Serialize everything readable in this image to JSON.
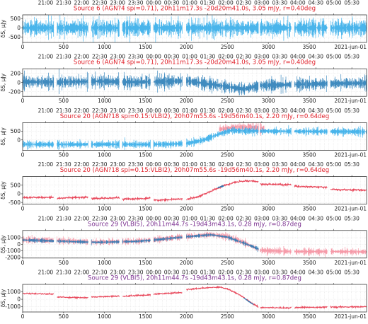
{
  "figure": {
    "colors": {
      "blue": "#1f77b4",
      "cyan": "#2aa8e8",
      "red": "#e8495c",
      "pink": "#f48a9a",
      "purple": "#7a2f8f",
      "title_red": "#e0202a"
    }
  },
  "chart_data": [
    {
      "type": "scatter",
      "title": "Source 6 (AGN?4 spi=0.71), 20h11m17.3s -20d20m41.0s, 3.05 mJy, r=0.40deg",
      "title_color": "#e0202a",
      "ylabel": "δS, μJy",
      "date_label": "2021-jun-01",
      "xlim": [
        0,
        4200
      ],
      "ylim": [
        -800,
        700
      ],
      "yticks": [
        -500,
        0,
        500
      ],
      "xticks": [
        0,
        500,
        1000,
        1500,
        2000,
        2500,
        3000,
        3500
      ],
      "top_ticks": [
        "21:00",
        "21:30",
        "22:00",
        "22:30",
        "23:00",
        "23:30",
        "00:00",
        "00:30",
        "01:00",
        "01:30",
        "02:00",
        "02:30",
        "03:00",
        "03:30",
        "04:00",
        "04:30",
        "05:00",
        "05:30"
      ],
      "grid": true,
      "series": [
        {
          "style": "noisy",
          "color": "#2aa8e8",
          "points": [
            [
              0,
              0
            ],
            [
              4200,
              0
            ]
          ],
          "noise": 250
        }
      ],
      "segments": [
        [
          0,
          380
        ],
        [
          420,
          800
        ],
        [
          840,
          1180
        ],
        [
          1220,
          1560
        ],
        [
          1600,
          1950
        ],
        [
          2000,
          2880
        ],
        [
          2900,
          3280
        ],
        [
          3320,
          3720
        ],
        [
          3760,
          4200
        ]
      ]
    },
    {
      "type": "scatter",
      "title": "Source 6 (AGN?4 spi=0.71), 20h11m17.3s -20d20m41.0s, 3.05 mJy, r=0.40deg",
      "title_color": "#e0202a",
      "ylabel": "δS, μJy",
      "date_label": "2021-jun-01",
      "xlim": [
        0,
        4200
      ],
      "ylim": [
        -300,
        300
      ],
      "yticks": [
        -200,
        0,
        200
      ],
      "xticks": [
        0,
        500,
        1000,
        1500,
        2000,
        2500,
        3000,
        3500
      ],
      "top_ticks": [
        "21:00",
        "21:30",
        "22:00",
        "22:30",
        "23:00",
        "23:30",
        "00:00",
        "00:30",
        "01:00",
        "01:30",
        "02:00",
        "02:30",
        "03:00",
        "03:30",
        "04:00",
        "04:30",
        "05:00",
        "05:30"
      ],
      "grid": true,
      "series": [
        {
          "style": "noisy",
          "color": "#1f77b4",
          "points": [
            [
              0,
              20
            ],
            [
              400,
              10
            ],
            [
              900,
              30
            ],
            [
              1400,
              10
            ],
            [
              2000,
              40
            ],
            [
              2400,
              -60
            ],
            [
              2700,
              -140
            ],
            [
              2900,
              -60
            ],
            [
              3300,
              -40
            ],
            [
              3800,
              -20
            ],
            [
              4200,
              -10
            ]
          ],
          "noise": 70
        }
      ],
      "segments": [
        [
          0,
          380
        ],
        [
          420,
          800
        ],
        [
          840,
          1180
        ],
        [
          1220,
          1560
        ],
        [
          1600,
          1950
        ],
        [
          2000,
          2880
        ],
        [
          2900,
          3280
        ],
        [
          3320,
          3720
        ],
        [
          3760,
          4200
        ]
      ]
    },
    {
      "type": "scatter",
      "title": "Source 20 (AGN?18 spi=0.15:VLBI2), 20h07m55.6s -19d56m40.1s, 2.20 mJy, r=0.64deg",
      "title_color": "#e0202a",
      "ylabel": "δS, μJy",
      "date_label": "2021-jun-01",
      "xlim": [
        0,
        4200
      ],
      "ylim": [
        -600,
        1000
      ],
      "yticks": [
        0,
        500
      ],
      "xticks": [
        0,
        500,
        1000,
        1500,
        2000,
        2500,
        3000,
        3500
      ],
      "top_ticks": [
        "21:00",
        "21:30",
        "22:00",
        "22:30",
        "23:00",
        "23:30",
        "00:00",
        "00:30",
        "01:00",
        "01:30",
        "02:00",
        "02:30",
        "03:00",
        "03:30",
        "04:00",
        "04:30",
        "05:00",
        "05:30"
      ],
      "grid": true,
      "series": [
        {
          "style": "noisy",
          "color": "#f48a9a",
          "points": [
            [
              2400,
              620
            ],
            [
              2600,
              760
            ],
            [
              2800,
              740
            ],
            [
              2950,
              680
            ]
          ],
          "noise": 120
        },
        {
          "style": "noisy",
          "color": "#2aa8e8",
          "points": [
            [
              0,
              -250
            ],
            [
              500,
              -260
            ],
            [
              1000,
              -250
            ],
            [
              1500,
              -260
            ],
            [
              1800,
              -240
            ],
            [
              2000,
              -200
            ],
            [
              2200,
              -20
            ],
            [
              2400,
              350
            ],
            [
              2550,
              560
            ],
            [
              2700,
              520
            ],
            [
              2900,
              520
            ],
            [
              3300,
              500
            ],
            [
              3800,
              490
            ],
            [
              4200,
              480
            ]
          ],
          "noise": 110
        }
      ],
      "segments": [
        [
          0,
          380
        ],
        [
          420,
          800
        ],
        [
          840,
          1180
        ],
        [
          1220,
          1560
        ],
        [
          1600,
          1950
        ],
        [
          2000,
          2880
        ],
        [
          2900,
          3280
        ],
        [
          3320,
          3720
        ],
        [
          3760,
          4200
        ]
      ]
    },
    {
      "type": "scatter",
      "title": "Source 20 (AGN?18 spi=0.15:VLBI2), 20h07m55.6s -19d56m40.1s, 2.20 mJy, r=0.64deg",
      "title_color": "#e0202a",
      "ylabel": "δS, μJy",
      "date_label": "2021-jun-01",
      "xlim": [
        0,
        4200
      ],
      "ylim": [
        -600,
        1000
      ],
      "yticks": [
        -500,
        0,
        500
      ],
      "xticks": [
        0,
        500,
        1000,
        1500,
        2000,
        2500,
        3000,
        3500
      ],
      "top_ticks": [
        "21:00",
        "21:30",
        "22:00",
        "22:30",
        "23:00",
        "23:30",
        "00:00",
        "00:30",
        "01:00",
        "01:30",
        "02:00",
        "02:30",
        "03:00",
        "03:30",
        "04:00",
        "04:30",
        "05:00",
        "05:30"
      ],
      "grid": true,
      "series": [
        {
          "style": "line",
          "color": "#e8495c",
          "points": [
            [
              0,
              -220
            ],
            [
              380,
              -210
            ],
            [
              420,
              -250
            ],
            [
              800,
              -200
            ],
            [
              840,
              -290
            ],
            [
              1180,
              -210
            ],
            [
              1220,
              -320
            ],
            [
              1560,
              -260
            ],
            [
              1600,
              -380
            ],
            [
              1950,
              -300
            ],
            [
              2000,
              -330
            ],
            [
              2150,
              -150
            ],
            [
              2300,
              150
            ],
            [
              2450,
              460
            ],
            [
              2600,
              680
            ],
            [
              2750,
              760
            ],
            [
              2880,
              700
            ],
            [
              2900,
              560
            ],
            [
              3280,
              520
            ],
            [
              3320,
              440
            ],
            [
              3720,
              380
            ],
            [
              3760,
              250
            ],
            [
              4200,
              210
            ]
          ],
          "noise": 25
        },
        {
          "style": "line",
          "color": "#1f77b4",
          "points": [
            [
              2380,
              360
            ],
            [
              2420,
              420
            ],
            [
              2460,
              470
            ]
          ],
          "noise": 15
        }
      ],
      "segments": [
        [
          0,
          380
        ],
        [
          420,
          800
        ],
        [
          840,
          1180
        ],
        [
          1220,
          1560
        ],
        [
          1600,
          1950
        ],
        [
          2000,
          2880
        ],
        [
          2900,
          3280
        ],
        [
          3320,
          3720
        ],
        [
          3760,
          4200
        ]
      ]
    },
    {
      "type": "scatter",
      "title": "Source 29 (VLBI5), 20h11m44.7s -19d43m43.1s, 0.28 mJy, r=0.87deg",
      "title_color": "#7a2f8f",
      "ylabel": "δS, μJy",
      "date_label": "2021-jun-01",
      "xlim": [
        0,
        4200
      ],
      "ylim": [
        -2100,
        2100
      ],
      "yticks": [
        -2000,
        -1000,
        0,
        1000
      ],
      "xticks": [
        0,
        500,
        1000,
        1500,
        2000,
        2500,
        3000,
        3500
      ],
      "top_ticks": [
        "21:00",
        "21:30",
        "22:00",
        "22:30",
        "23:00",
        "23:30",
        "00:00",
        "00:30",
        "01:00",
        "01:30",
        "02:00",
        "02:30",
        "03:00",
        "03:30",
        "04:00",
        "04:30",
        "05:00",
        "05:30"
      ],
      "grid": true,
      "series": [
        {
          "style": "noisy",
          "color": "#f48a9a",
          "points": [
            [
              0,
              700
            ],
            [
              400,
              600
            ],
            [
              900,
              350
            ],
            [
              1400,
              500
            ],
            [
              1600,
              700
            ],
            [
              2000,
              1200
            ],
            [
              2300,
              1500
            ],
            [
              2500,
              1200
            ],
            [
              2700,
              300
            ],
            [
              2900,
              -900
            ],
            [
              3300,
              -1100
            ],
            [
              3800,
              -1100
            ],
            [
              4200,
              -1150
            ]
          ],
          "noise": 260
        },
        {
          "style": "noisy",
          "color": "#1f77b4",
          "points": [
            [
              0,
              650
            ],
            [
              400,
              500
            ],
            [
              900,
              300
            ],
            [
              1400,
              450
            ],
            [
              1600,
              650
            ],
            [
              2000,
              1150
            ],
            [
              2300,
              1450
            ],
            [
              2500,
              1100
            ],
            [
              2700,
              200
            ],
            [
              2900,
              -800
            ]
          ],
          "noise": 140
        }
      ],
      "segments": [
        [
          0,
          380
        ],
        [
          420,
          800
        ],
        [
          840,
          1180
        ],
        [
          1220,
          1560
        ],
        [
          1600,
          1950
        ],
        [
          2000,
          2880
        ],
        [
          2900,
          3280
        ],
        [
          3320,
          3720
        ],
        [
          3760,
          4200
        ]
      ]
    },
    {
      "type": "scatter",
      "title": "Source 29 (VLBI5), 20h11m44.7s -19d43m43.1s, 0.28 mJy, r=0.87deg",
      "title_color": "#7a2f8f",
      "ylabel": "δS, μJy",
      "date_label": "2021-jun-01",
      "xlim": [
        0,
        4200
      ],
      "ylim": [
        -1700,
        2000
      ],
      "yticks": [
        -1000,
        0,
        1000
      ],
      "xticks": [
        0,
        500,
        1000,
        1500,
        2000,
        2500,
        3000,
        3500
      ],
      "top_ticks": [
        "21:00",
        "21:30",
        "22:00",
        "22:30",
        "23:00",
        "23:30",
        "00:00",
        "00:30",
        "01:00",
        "01:30",
        "02:00",
        "02:30",
        "03:00",
        "03:30",
        "04:00",
        "04:30",
        "05:00",
        "05:30"
      ],
      "grid": true,
      "series": [
        {
          "style": "line",
          "color": "#e8495c",
          "points": [
            [
              0,
              800
            ],
            [
              380,
              700
            ],
            [
              420,
              300
            ],
            [
              800,
              200
            ],
            [
              840,
              300
            ],
            [
              1180,
              450
            ],
            [
              1220,
              400
            ],
            [
              1560,
              600
            ],
            [
              1600,
              700
            ],
            [
              1950,
              900
            ],
            [
              2000,
              1300
            ],
            [
              2200,
              1500
            ],
            [
              2400,
              1650
            ],
            [
              2500,
              1400
            ],
            [
              2650,
              600
            ],
            [
              2800,
              -500
            ],
            [
              2880,
              -1050
            ],
            [
              2900,
              -1100
            ],
            [
              3280,
              -1150
            ],
            [
              3320,
              -1100
            ],
            [
              3720,
              -1050
            ],
            [
              3760,
              -1050
            ],
            [
              4200,
              -1000
            ]
          ],
          "noise": 40
        },
        {
          "style": "line",
          "color": "#1f77b4",
          "points": [
            [
              2700,
              200
            ],
            [
              2760,
              -300
            ],
            [
              2820,
              -700
            ]
          ],
          "noise": 20
        }
      ],
      "segments": [
        [
          0,
          380
        ],
        [
          420,
          800
        ],
        [
          840,
          1180
        ],
        [
          1220,
          1560
        ],
        [
          1600,
          1950
        ],
        [
          2000,
          2880
        ],
        [
          2900,
          3280
        ],
        [
          3320,
          3720
        ],
        [
          3760,
          4200
        ]
      ]
    }
  ]
}
